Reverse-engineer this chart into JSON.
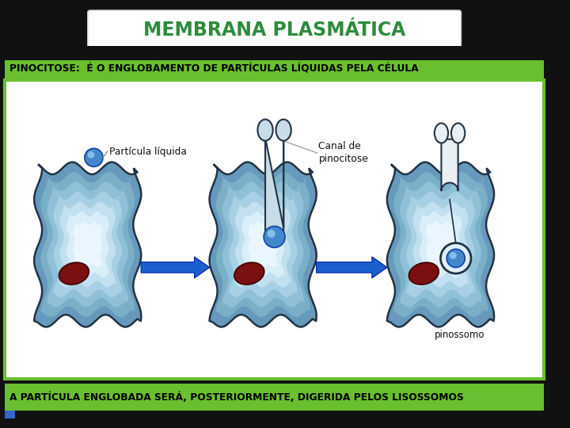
{
  "title": "MEMBRANA PLASMÁTICA",
  "title_color": "#2e8b3c",
  "subtitle": "PINOCITOSE:  É O ENGLOBAMENTO DE PARTÍCULAS LÍQUIDAS PELA CÉLULA",
  "subtitle_bg": "#6abf2e",
  "subtitle_color": "#000000",
  "bottom_text": "A PARTÍCULA ENGLOBADA SERÁ, POSTERIORMENTE, DIGERIDA PELOS LISOSSOMOS",
  "bottom_bg": "#6abf2e",
  "bottom_color": "#000000",
  "label_particula": "Partícula líquida",
  "label_canal": "Canal de\npinocitose",
  "label_pinossomo": "pinossomo",
  "main_bg": "#111111",
  "content_bg": "#ffffff",
  "content_border": "#6abf2e",
  "arrow_color": "#1a5fcc"
}
